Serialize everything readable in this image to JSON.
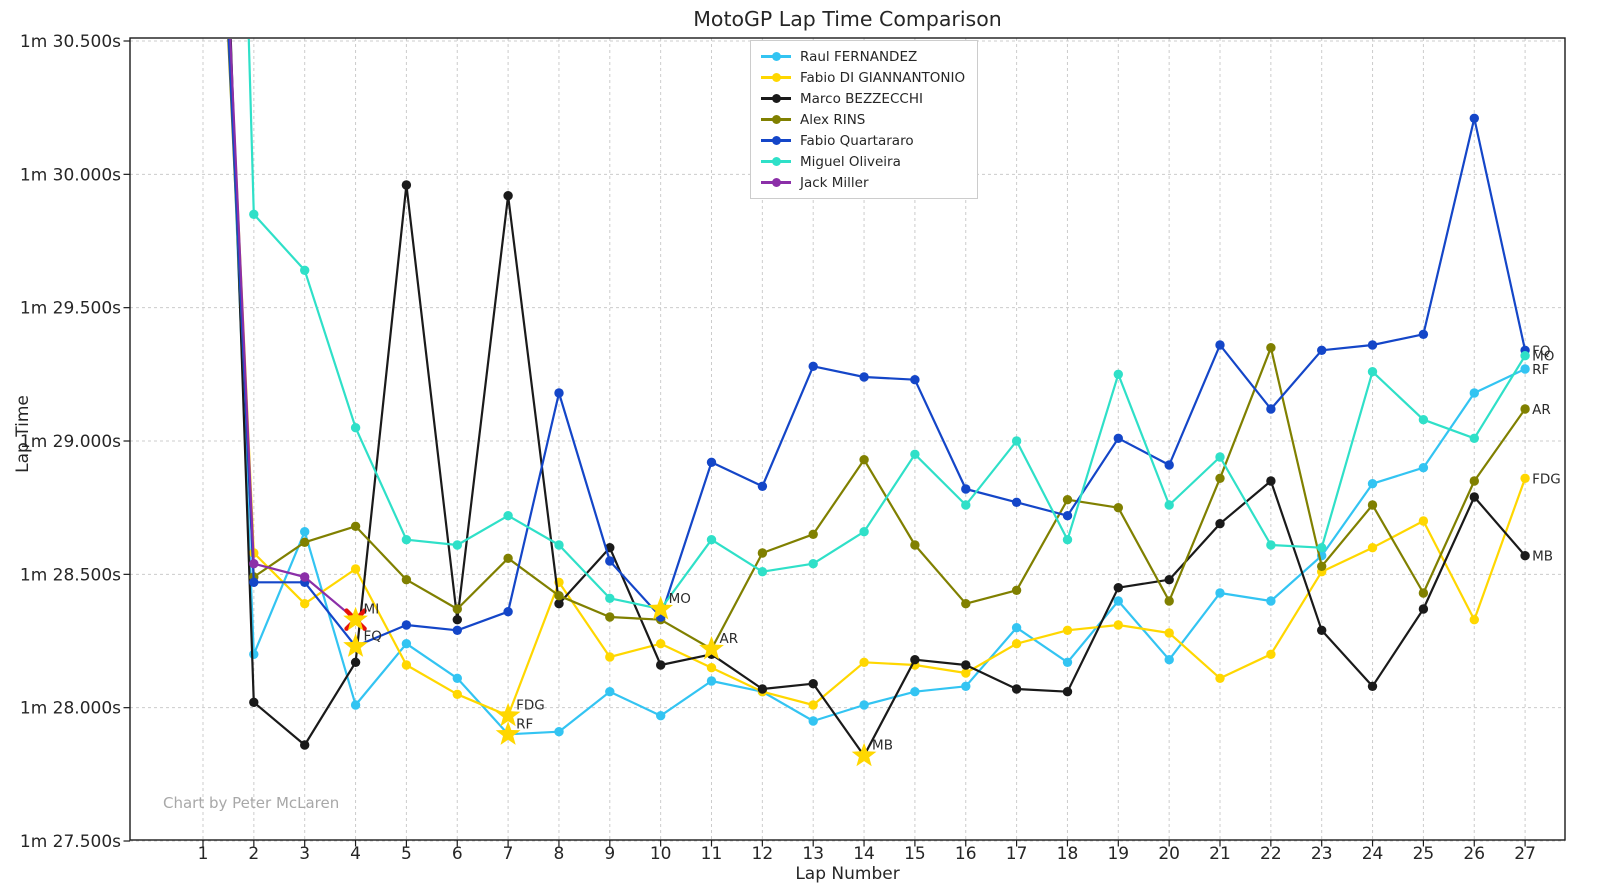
{
  "title": "MotoGP Lap Time Comparison",
  "credit": "Chart by Peter McLaren",
  "axes": {
    "x_label": "Lap Number",
    "y_label": "Lap Time",
    "y_tick_labels": [
      "1m 30.500s",
      "1m 30.000s",
      "1m 29.500s",
      "1m 29.000s",
      "1m 28.500s",
      "1m 28.000s",
      "1m 27.500s"
    ]
  },
  "chart_data": {
    "type": "line",
    "title": "MotoGP Lap Time Comparison",
    "xlabel": "Lap Number",
    "ylabel": "Lap Time",
    "x": [
      1,
      2,
      3,
      4,
      5,
      6,
      7,
      8,
      9,
      10,
      11,
      12,
      13,
      14,
      15,
      16,
      17,
      18,
      19,
      20,
      21,
      22,
      23,
      24,
      25,
      26,
      27
    ],
    "ylim": [
      27.5,
      30.5
    ],
    "y_ticks": [
      30.5,
      30.0,
      29.5,
      29.0,
      28.5,
      28.0,
      27.5
    ],
    "y_tick_format": "1m {ss.sss}s",
    "grid": true,
    "legend_position": "upper-center-left",
    "style": {
      "grid_color": "#cccccc",
      "spine_color": "#1a1a1a",
      "star_color": "#ffd700",
      "crash_color": "#e8120b",
      "label_color": "#2b2b2b"
    },
    "series": [
      {
        "name": "Raul FERNANDEZ",
        "abbr": "RF",
        "color": "#33c4f2",
        "values": [
          33.0,
          28.2,
          28.66,
          28.01,
          28.24,
          28.11,
          27.9,
          27.91,
          28.06,
          27.97,
          28.1,
          28.06,
          27.95,
          28.01,
          28.06,
          28.08,
          28.3,
          28.17,
          28.4,
          28.18,
          28.43,
          28.4,
          28.57,
          28.84,
          28.9,
          29.18,
          29.27
        ]
      },
      {
        "name": "Fabio DI GIANNANTONIO",
        "abbr": "FDG",
        "color": "#ffd700",
        "values": [
          32.7,
          28.58,
          28.39,
          28.52,
          28.16,
          28.05,
          27.97,
          28.47,
          28.19,
          28.24,
          28.15,
          28.06,
          28.01,
          28.17,
          28.16,
          28.13,
          28.24,
          28.29,
          28.31,
          28.28,
          28.11,
          28.2,
          28.51,
          28.6,
          28.7,
          28.33,
          28.86
        ]
      },
      {
        "name": "Marco BEZZECCHI",
        "abbr": "MB",
        "color": "#1a1a1a",
        "values": [
          33.5,
          28.02,
          27.86,
          28.17,
          29.96,
          28.33,
          29.92,
          28.39,
          28.6,
          28.16,
          28.2,
          28.07,
          28.09,
          27.82,
          28.18,
          28.16,
          28.07,
          28.06,
          28.45,
          28.48,
          28.69,
          28.85,
          28.29,
          28.08,
          28.37,
          28.79,
          28.57
        ]
      },
      {
        "name": "Alex RINS",
        "abbr": "AR",
        "color": "#808000",
        "values": [
          32.5,
          28.49,
          28.62,
          28.68,
          28.48,
          28.37,
          28.56,
          28.42,
          28.34,
          28.33,
          28.22,
          28.58,
          28.65,
          28.93,
          28.61,
          28.39,
          28.44,
          28.78,
          28.75,
          28.4,
          28.86,
          29.35,
          28.53,
          28.76,
          28.43,
          28.85,
          29.12
        ]
      },
      {
        "name": "Fabio Quartararo",
        "abbr": "FQ",
        "color": "#1446c8",
        "values": [
          32.6,
          28.47,
          28.47,
          28.23,
          28.31,
          28.29,
          28.36,
          29.18,
          28.55,
          28.34,
          28.92,
          28.83,
          29.28,
          29.24,
          29.23,
          28.82,
          28.77,
          28.72,
          29.01,
          28.91,
          29.36,
          29.12,
          29.34,
          29.36,
          29.4,
          30.21,
          29.34
        ]
      },
      {
        "name": "Miguel Oliveira",
        "abbr": "MO",
        "color": "#2fe0c8",
        "values": [
          36.5,
          29.85,
          29.64,
          29.05,
          28.63,
          28.61,
          28.72,
          28.61,
          28.41,
          28.37,
          28.63,
          28.51,
          28.54,
          28.66,
          28.95,
          28.76,
          29.0,
          28.63,
          29.25,
          28.76,
          28.94,
          28.61,
          28.6,
          29.26,
          29.08,
          29.01,
          29.32
        ]
      },
      {
        "name": "Jack Miller",
        "abbr": "MI",
        "color": "#8b2fa8",
        "values": [
          32.8,
          28.54,
          28.49,
          28.33,
          null,
          null,
          null,
          null,
          null,
          null,
          null,
          null,
          null,
          null,
          null,
          null,
          null,
          null,
          null,
          null,
          null,
          null,
          null,
          null,
          null,
          null,
          null
        ]
      }
    ],
    "annotations": [
      {
        "abbr": "MI",
        "lap": 4,
        "value": 28.33,
        "marker": "star-red-x"
      },
      {
        "abbr": "FQ",
        "lap": 4,
        "value": 28.23,
        "marker": "star"
      },
      {
        "abbr": "FDG",
        "lap": 7,
        "value": 27.97,
        "marker": "star"
      },
      {
        "abbr": "RF",
        "lap": 7,
        "value": 27.9,
        "marker": "star"
      },
      {
        "abbr": "MO",
        "lap": 10,
        "value": 28.37,
        "marker": "star"
      },
      {
        "abbr": "AR",
        "lap": 11,
        "value": 28.22,
        "marker": "star"
      },
      {
        "abbr": "MB",
        "lap": 14,
        "value": 27.82,
        "marker": "star"
      }
    ],
    "end_labels": [
      "FQ",
      "MO",
      "RF",
      "AR",
      "FDG",
      "MB"
    ]
  }
}
